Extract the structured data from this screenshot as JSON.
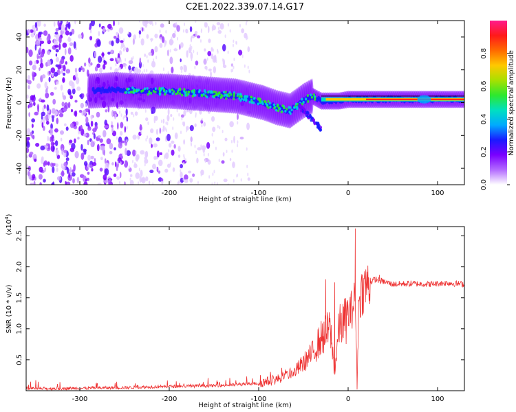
{
  "page_title": "C2E1.2022.339.07.14.G17",
  "chart_data": [
    {
      "type": "heatmap",
      "title": "C2E1.2022.339.07.14.G17",
      "xlabel": "Height of straight line (km)",
      "ylabel": "Frequency (Hz)",
      "xlim": [
        -360,
        130
      ],
      "ylim": [
        -50,
        50
      ],
      "xticks": [
        -300,
        -200,
        -100,
        0,
        100
      ],
      "yticks": [
        -40,
        -20,
        0,
        20,
        40
      ],
      "colorbar": {
        "label": "Normalized spectral amplitude",
        "range": [
          0,
          1
        ],
        "ticks": [
          0.0,
          0.2,
          0.4,
          0.6,
          0.8
        ],
        "colors": [
          "#ffffff",
          "#b36bff",
          "#7a00ff",
          "#1a1aff",
          "#00aaff",
          "#00e0c0",
          "#2ee82e",
          "#a8e000",
          "#ffc800",
          "#ff6a00",
          "#ff1a1a",
          "#ff1a8c"
        ]
      },
      "ridge": {
        "x": [
          -290,
          -260,
          -230,
          -200,
          -175,
          -150,
          -125,
          -110,
          -95,
          -80,
          -65,
          -50,
          -40,
          -30,
          -20,
          -10,
          0,
          20,
          50,
          80,
          100,
          130
        ],
        "y": [
          7,
          8,
          7,
          7,
          6,
          5,
          4,
          2,
          0,
          -3,
          -5,
          1,
          4,
          1,
          1,
          1,
          2,
          2,
          2,
          2,
          2,
          2
        ]
      },
      "noise_region": {
        "x_range": [
          -360,
          -100
        ],
        "description_color": "#b36bff"
      }
    },
    {
      "type": "line",
      "xlabel": "Height of straight line (km)",
      "ylabel": "SNR (10 * v/v)",
      "y_scale_label": "(x10",
      "y_scale_exp": "4",
      "y_scale_close": ")",
      "xlim": [
        -360,
        130
      ],
      "ylim": [
        0,
        2.65
      ],
      "xticks": [
        -300,
        -200,
        -100,
        0,
        100
      ],
      "yticks": [
        0.5,
        1.0,
        1.5,
        2.0,
        2.5
      ],
      "line_color": "#ee3333",
      "envelope": {
        "x": [
          -360,
          -300,
          -250,
          -200,
          -150,
          -120,
          -100,
          -80,
          -60,
          -50,
          -40,
          -30,
          -20,
          -15,
          -10,
          -5,
          0,
          5,
          8,
          10,
          12,
          15,
          20,
          25,
          30,
          40,
          50,
          70,
          90,
          110,
          130
        ],
        "y": [
          0.03,
          0.04,
          0.05,
          0.07,
          0.08,
          0.1,
          0.12,
          0.18,
          0.3,
          0.45,
          0.6,
          0.85,
          1.0,
          0.3,
          1.05,
          1.1,
          1.2,
          1.35,
          1.5,
          0.1,
          1.45,
          1.6,
          1.7,
          1.75,
          1.8,
          1.76,
          1.72,
          1.73,
          1.72,
          1.74,
          1.72
        ]
      },
      "spikes": [
        {
          "x": 8,
          "y": 2.62
        },
        {
          "x": 10,
          "y": 0.02
        },
        {
          "x": -25,
          "y": 1.8
        },
        {
          "x": -15,
          "y": 1.75
        },
        {
          "x": 35,
          "y": 1.87
        }
      ]
    }
  ]
}
